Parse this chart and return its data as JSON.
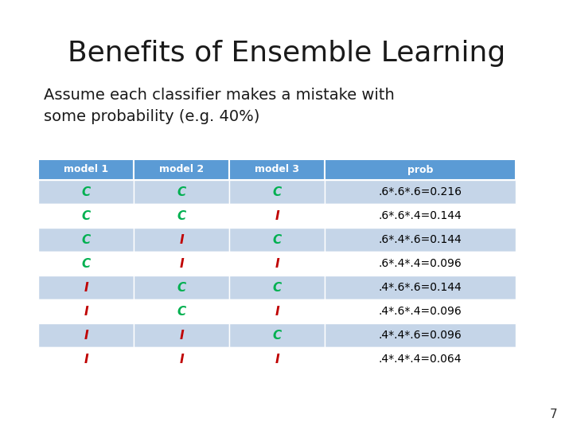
{
  "title": "Benefits of Ensemble Learning",
  "subtitle": "Assume each classifier makes a mistake with\nsome probability (e.g. 40%)",
  "page_number": "7",
  "header_row": [
    "model 1",
    "model 2",
    "model 3",
    "prob"
  ],
  "table_rows": [
    [
      "C",
      "C",
      "C",
      ".6*.6*.6=0.216"
    ],
    [
      "C",
      "C",
      "I",
      ".6*.6*.4=0.144"
    ],
    [
      "C",
      "I",
      "C",
      ".6*.4*.6=0.144"
    ],
    [
      "C",
      "I",
      "I",
      ".6*.4*.4=0.096"
    ],
    [
      "I",
      "C",
      "C",
      ".4*.6*.6=0.144"
    ],
    [
      "I",
      "C",
      "I",
      ".4*.6*.4=0.096"
    ],
    [
      "I",
      "I",
      "C",
      ".4*.4*.6=0.096"
    ],
    [
      "I",
      "I",
      "I",
      ".4*.4*.4=0.064"
    ]
  ],
  "row_colors": [
    [
      "C",
      "C",
      "C"
    ],
    [
      "C",
      "C",
      "I"
    ],
    [
      "C",
      "I",
      "C"
    ],
    [
      "C",
      "I",
      "I"
    ],
    [
      "I",
      "C",
      "C"
    ],
    [
      "I",
      "C",
      "I"
    ],
    [
      "I",
      "I",
      "C"
    ],
    [
      "I",
      "I",
      "I"
    ]
  ],
  "header_bg": "#5B9BD5",
  "row_bg_shaded": "#C5D5E8",
  "row_bg_white": "#FFFFFF",
  "correct_color": "#00B050",
  "incorrect_color": "#C00000",
  "prob_color": "#000000",
  "background_color": "#FFFFFF",
  "title_fontsize": 26,
  "subtitle_fontsize": 14,
  "header_fontsize": 9,
  "cell_fontsize": 11,
  "prob_fontsize": 10
}
